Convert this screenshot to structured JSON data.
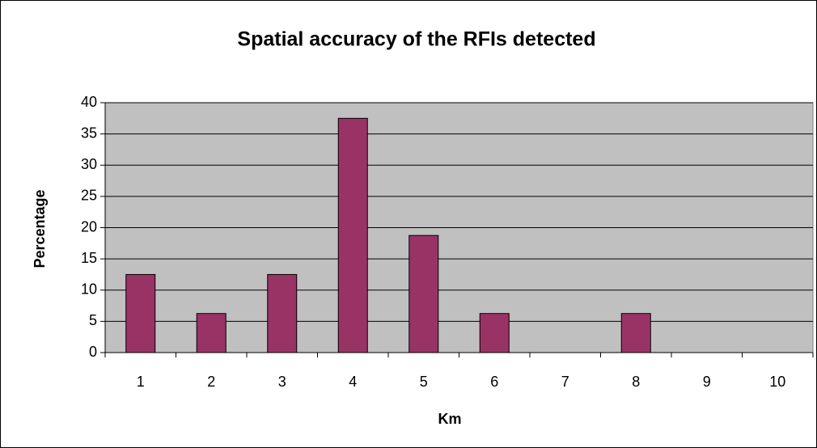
{
  "chart_data": {
    "type": "bar",
    "title": "Spatial accuracy of the RFIs detected",
    "x_label": "Km",
    "y_label": "Percentage",
    "categories": [
      "1",
      "2",
      "3",
      "4",
      "5",
      "6",
      "7",
      "8",
      "9",
      "10"
    ],
    "values": [
      12.5,
      6.25,
      12.5,
      37.5,
      18.75,
      6.25,
      0,
      6.25,
      0,
      0
    ],
    "color": "#993366",
    "ylim": [
      0,
      40
    ],
    "yticks": [
      0,
      5,
      10,
      15,
      20,
      25,
      30,
      35,
      40
    ],
    "grid": true
  }
}
